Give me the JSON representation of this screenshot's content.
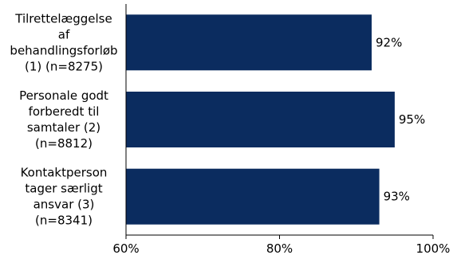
{
  "chart_data": {
    "type": "bar",
    "orientation": "horizontal",
    "categories": [
      "Tilrettelæggelse af behandlingsforløb (1) (n=8275)",
      "Personale godt forberedt til samtaler (2) (n=8812)",
      "Kontaktperson tager særligt ansvar (3) (n=8341)"
    ],
    "category_lines": [
      [
        "Tilrettelæggelse",
        "af",
        "behandlingsforløb",
        "(1) (n=8275)"
      ],
      [
        "Personale godt",
        "forberedt til",
        "samtaler (2)",
        "(n=8812)"
      ],
      [
        "Kontaktperson",
        "tager særligt",
        "ansvar (3)",
        "(n=8341)"
      ]
    ],
    "values": [
      92,
      95,
      93
    ],
    "data_labels": [
      "92%",
      "95%",
      "93%"
    ],
    "xlim": [
      60,
      100
    ],
    "xticks": [
      60,
      80,
      100
    ],
    "xtick_labels": [
      "60%",
      "80%",
      "100%"
    ],
    "grid": false,
    "bar_color": "#0b2c5f"
  }
}
